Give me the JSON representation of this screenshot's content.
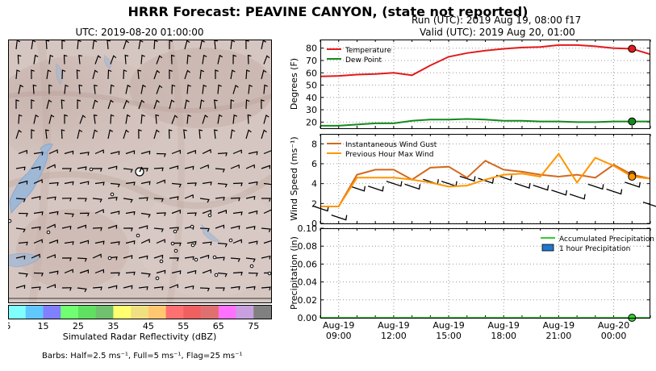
{
  "title": "HRRR Forecast: PEAVINE CANYON, (state not reported)",
  "map": {
    "title": "UTC: 2019-08-20 01:00:00",
    "colorbar": {
      "label": "Simulated Radar Reflectivity (dBZ)",
      "ticks": [
        "5",
        "15",
        "25",
        "35",
        "45",
        "55",
        "65",
        "75"
      ],
      "colors": [
        "#80ffff",
        "#60c8ff",
        "#8080ff",
        "#70ff70",
        "#60e060",
        "#70c070",
        "#ffff70",
        "#f0e080",
        "#ffc870",
        "#ff7070",
        "#f06060",
        "#e07070",
        "#ff70ff",
        "#c8a0e0",
        "#808080"
      ]
    },
    "barb_note": "Barbs: Half=2.5 ms⁻¹, Full=5 ms⁻¹, Flag=25 ms⁻¹"
  },
  "run_line": "Run (UTC): 2019 Aug 19, 08:00 f17",
  "valid_line": "Valid (UTC): 2019 Aug 20, 01:00",
  "x_ticks": [
    {
      "hour": 1,
      "line1": "Aug-19",
      "line2": "09:00"
    },
    {
      "hour": 4,
      "line1": "Aug-19",
      "line2": "12:00"
    },
    {
      "hour": 7,
      "line1": "Aug-19",
      "line2": "15:00"
    },
    {
      "hour": 10,
      "line1": "Aug-19",
      "line2": "18:00"
    },
    {
      "hour": 13,
      "line1": "Aug-19",
      "line2": "21:00"
    },
    {
      "hour": 16,
      "line1": "Aug-20",
      "line2": "00:00"
    }
  ],
  "chart_data": [
    {
      "type": "line",
      "ylabel": "Degrees (F)",
      "ylim": [
        15,
        87
      ],
      "yticks": [
        20,
        30,
        40,
        50,
        60,
        70,
        80
      ],
      "x": [
        0,
        1,
        2,
        3,
        4,
        5,
        6,
        7,
        8,
        9,
        10,
        11,
        12,
        13,
        14,
        15,
        16,
        17,
        18
      ],
      "series": [
        {
          "name": "Temperature",
          "color": "#e31a1c",
          "values": [
            57,
            57.5,
            58.5,
            59,
            60,
            58,
            66,
            73,
            76,
            78,
            79.5,
            80.5,
            81,
            82.5,
            82.5,
            81.5,
            80,
            79.5,
            75
          ]
        },
        {
          "name": "Dew Point",
          "color": "#138a1c",
          "values": [
            17,
            17,
            18,
            19,
            19,
            21,
            22,
            22,
            22.5,
            22,
            21,
            21,
            20.5,
            20.5,
            20,
            20,
            20.5,
            20.5,
            20.5
          ]
        }
      ],
      "highlight_x": 17,
      "legend": "top-left"
    },
    {
      "type": "line",
      "ylabel": "Wind Speed (ms⁻¹)",
      "ylim": [
        0,
        9
      ],
      "yticks": [
        0,
        2,
        4,
        6,
        8
      ],
      "x": [
        0,
        1,
        2,
        3,
        4,
        5,
        6,
        7,
        8,
        9,
        10,
        11,
        12,
        13,
        14,
        15,
        16,
        17,
        18
      ],
      "series": [
        {
          "name": "Instantaneous Wind Gust",
          "color": "#d2691e",
          "values": [
            1.7,
            1.7,
            4.9,
            5.4,
            5.4,
            4.4,
            5.6,
            5.7,
            4.6,
            6.3,
            5.4,
            5.2,
            4.9,
            4.7,
            4.9,
            4.6,
            5.9,
            4.9,
            4.5
          ]
        },
        {
          "name": "Previous Hour Max Wind",
          "color": "#ff9500",
          "values": [
            1.7,
            1.7,
            4.6,
            4.6,
            4.6,
            4.4,
            4.1,
            3.7,
            3.8,
            4.4,
            4.9,
            5.0,
            4.7,
            7.0,
            4.1,
            6.6,
            5.8,
            4.7,
            4.5
          ]
        }
      ],
      "barbs_value": [
        1.5,
        0.6,
        3.5,
        3.5,
        4.0,
        3.7,
        4.2,
        4.0,
        4.5,
        4.3,
        4.6,
        3.8,
        3.6,
        3.1,
        2.7,
        3.7,
        3.2,
        3.9,
        1.9
      ],
      "highlight_x": 17,
      "legend": "top-left"
    },
    {
      "type": "line",
      "ylabel": "Precipitation (in)",
      "ylim": [
        0,
        0.1
      ],
      "yticks": [
        0.0,
        0.02,
        0.04,
        0.06,
        0.08,
        0.1
      ],
      "ytick_labels": [
        "0.00",
        "0.02",
        "0.04",
        "0.06",
        "0.08",
        "0.10"
      ],
      "x": [
        0,
        1,
        2,
        3,
        4,
        5,
        6,
        7,
        8,
        9,
        10,
        11,
        12,
        13,
        14,
        15,
        16,
        17,
        18
      ],
      "series": [
        {
          "name": "Accumulated Precipitation",
          "color": "#33cc33",
          "values": [
            0,
            0,
            0,
            0,
            0,
            0,
            0,
            0,
            0,
            0,
            0,
            0,
            0,
            0,
            0,
            0,
            0,
            0,
            0
          ]
        },
        {
          "name": "1 hour Precipitation",
          "type": "bar",
          "color": "#1f77d0",
          "values": [
            0,
            0,
            0,
            0,
            0,
            0,
            0,
            0,
            0,
            0,
            0,
            0,
            0,
            0,
            0,
            0,
            0,
            0,
            0
          ]
        }
      ],
      "highlight_x": 17,
      "legend": "top-right"
    }
  ]
}
